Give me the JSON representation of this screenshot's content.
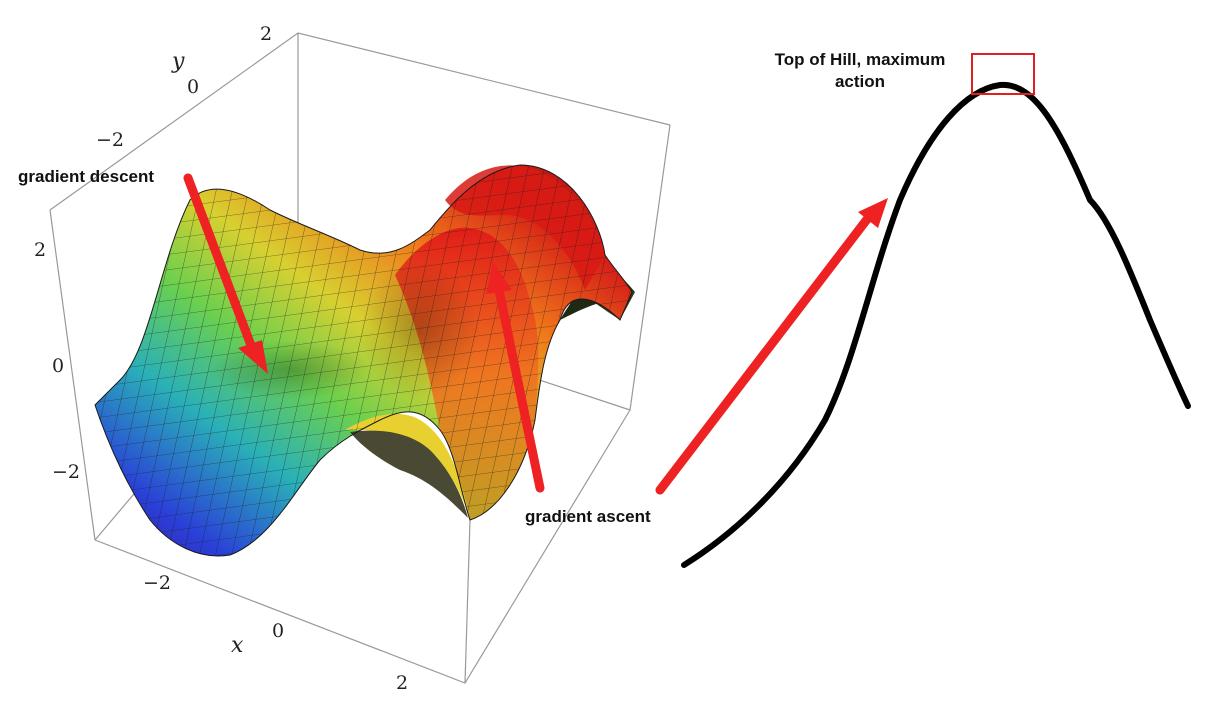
{
  "left_plot": {
    "axis_labels": {
      "x": "x",
      "y": "y"
    },
    "x_ticks": [
      "−2",
      "0",
      "2"
    ],
    "y_ticks": [
      "2",
      "0",
      "−2"
    ],
    "z_ticks": [
      "2",
      "0",
      "−2"
    ]
  },
  "annotations": {
    "gradient_descent": "gradient descent",
    "gradient_ascent": "gradient ascent",
    "top_of_hill_line1": "Top of Hill, maximum",
    "top_of_hill_line2": "action"
  },
  "colors": {
    "arrow": "#ee2222",
    "highlight_box": "#e02020",
    "curve": "#000000",
    "box_frame": "#999999"
  }
}
